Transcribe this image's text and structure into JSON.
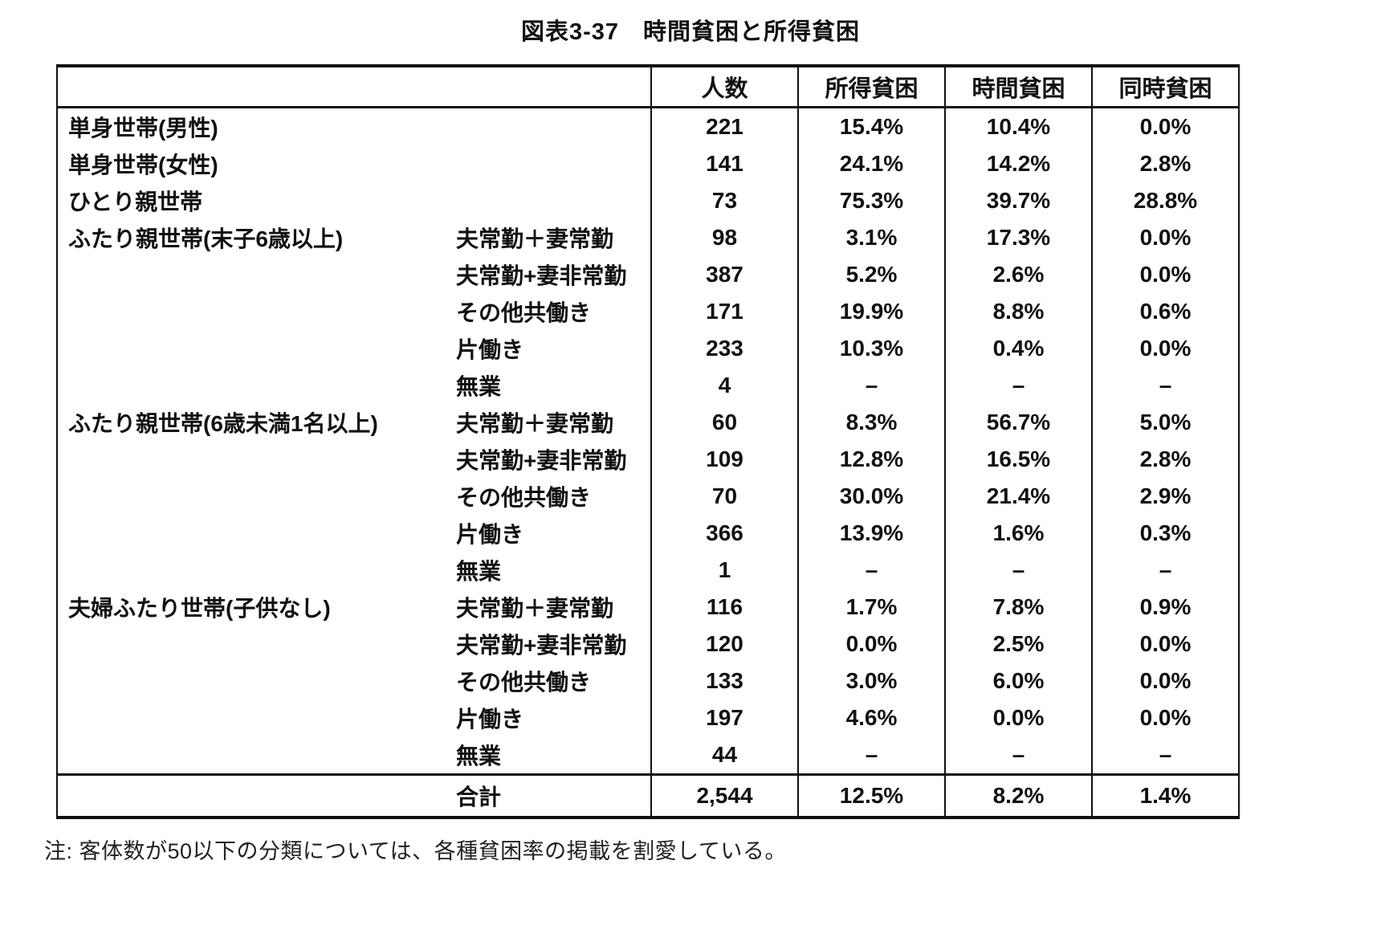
{
  "title": "図表3-37　時間貧困と所得貧困",
  "table": {
    "headers": {
      "group": "",
      "sub": "",
      "count": "人数",
      "income": "所得貧困",
      "time": "時間貧困",
      "both": "同時貧困"
    },
    "rows": [
      {
        "group": "単身世帯(男性)",
        "sub": "",
        "count": "221",
        "income": "15.4%",
        "time": "10.4%",
        "both": "0.0%"
      },
      {
        "group": "単身世帯(女性)",
        "sub": "",
        "count": "141",
        "income": "24.1%",
        "time": "14.2%",
        "both": "2.8%"
      },
      {
        "group": "ひとり親世帯",
        "sub": "",
        "count": "73",
        "income": "75.3%",
        "time": "39.7%",
        "both": "28.8%"
      },
      {
        "group": "ふたり親世帯(末子6歳以上)",
        "sub": "夫常勤＋妻常勤",
        "count": "98",
        "income": "3.1%",
        "time": "17.3%",
        "both": "0.0%"
      },
      {
        "group": "",
        "sub": "夫常勤+妻非常勤",
        "count": "387",
        "income": "5.2%",
        "time": "2.6%",
        "both": "0.0%"
      },
      {
        "group": "",
        "sub": "その他共働き",
        "count": "171",
        "income": "19.9%",
        "time": "8.8%",
        "both": "0.6%"
      },
      {
        "group": "",
        "sub": "片働き",
        "count": "233",
        "income": "10.3%",
        "time": "0.4%",
        "both": "0.0%"
      },
      {
        "group": "",
        "sub": "無業",
        "count": "4",
        "income": "–",
        "time": "–",
        "both": "–"
      },
      {
        "group": "ふたり親世帯(6歳未満1名以上)",
        "sub": "夫常勤＋妻常勤",
        "count": "60",
        "income": "8.3%",
        "time": "56.7%",
        "both": "5.0%"
      },
      {
        "group": "",
        "sub": "夫常勤+妻非常勤",
        "count": "109",
        "income": "12.8%",
        "time": "16.5%",
        "both": "2.8%"
      },
      {
        "group": "",
        "sub": "その他共働き",
        "count": "70",
        "income": "30.0%",
        "time": "21.4%",
        "both": "2.9%"
      },
      {
        "group": "",
        "sub": "片働き",
        "count": "366",
        "income": "13.9%",
        "time": "1.6%",
        "both": "0.3%"
      },
      {
        "group": "",
        "sub": "無業",
        "count": "1",
        "income": "–",
        "time": "–",
        "both": "–"
      },
      {
        "group": "夫婦ふたり世帯(子供なし)",
        "sub": "夫常勤＋妻常勤",
        "count": "116",
        "income": "1.7%",
        "time": "7.8%",
        "both": "0.9%"
      },
      {
        "group": "",
        "sub": "夫常勤+妻非常勤",
        "count": "120",
        "income": "0.0%",
        "time": "2.5%",
        "both": "0.0%"
      },
      {
        "group": "",
        "sub": "その他共働き",
        "count": "133",
        "income": "3.0%",
        "time": "6.0%",
        "both": "0.0%"
      },
      {
        "group": "",
        "sub": "片働き",
        "count": "197",
        "income": "4.6%",
        "time": "0.0%",
        "both": "0.0%"
      },
      {
        "group": "",
        "sub": "無業",
        "count": "44",
        "income": "–",
        "time": "–",
        "both": "–"
      }
    ],
    "total": {
      "label": "合計",
      "count": "2,544",
      "income": "12.5%",
      "time": "8.2%",
      "both": "1.4%"
    }
  },
  "note": "注: 客体数が50以下の分類については、各種貧困率の掲載を割愛している。"
}
